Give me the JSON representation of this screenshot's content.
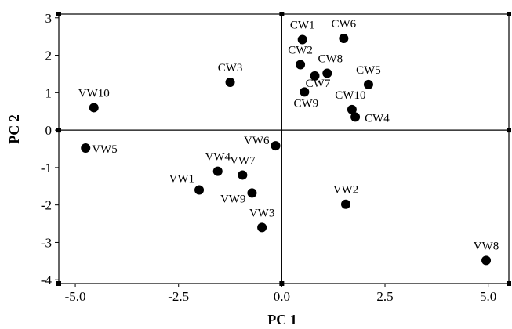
{
  "chart_data": {
    "type": "scatter",
    "title": "",
    "xlabel": "PC 1",
    "ylabel": "PC 2",
    "xlim": [
      -5.4,
      5.5
    ],
    "ylim": [
      -4.1,
      3.1
    ],
    "x_ticks": [
      -5.0,
      -2.5,
      0.0,
      2.5,
      5.0
    ],
    "x_tick_labels": [
      "-5.0",
      "-2.5",
      "0.0",
      "2.5",
      "5.0"
    ],
    "y_ticks": [
      -4,
      -3,
      -2,
      -1,
      0,
      1,
      2,
      3
    ],
    "y_tick_labels": [
      "-4",
      "-3",
      "-2",
      "-1",
      "0",
      "1",
      "2",
      "3"
    ],
    "grid": false,
    "reference_lines": {
      "x": 0,
      "y": 0
    },
    "points": [
      {
        "label": "CW1",
        "x": 0.5,
        "y": 2.42
      },
      {
        "label": "CW6",
        "x": 1.5,
        "y": 2.45
      },
      {
        "label": "CW2",
        "x": 0.45,
        "y": 1.75
      },
      {
        "label": "CW8",
        "x": 1.1,
        "y": 1.52
      },
      {
        "label": "CW7",
        "x": 0.8,
        "y": 1.45
      },
      {
        "label": "CW5",
        "x": 2.1,
        "y": 1.22
      },
      {
        "label": "CW3",
        "x": -1.25,
        "y": 1.28
      },
      {
        "label": "CW9",
        "x": 0.55,
        "y": 1.02
      },
      {
        "label": "CW10",
        "x": 1.7,
        "y": 0.55
      },
      {
        "label": "CW4",
        "x": 1.78,
        "y": 0.35
      },
      {
        "label": "VW10",
        "x": -4.55,
        "y": 0.6
      },
      {
        "label": "VW5",
        "x": -4.75,
        "y": -0.48
      },
      {
        "label": "VW6",
        "x": -0.15,
        "y": -0.42
      },
      {
        "label": "VW4",
        "x": -1.55,
        "y": -1.1
      },
      {
        "label": "VW7",
        "x": -0.95,
        "y": -1.2
      },
      {
        "label": "VW1",
        "x": -2.0,
        "y": -1.6
      },
      {
        "label": "VW9",
        "x": -0.72,
        "y": -1.68
      },
      {
        "label": "VW3",
        "x": -0.48,
        "y": -2.6
      },
      {
        "label": "VW2",
        "x": 1.55,
        "y": -1.98
      },
      {
        "label": "VW8",
        "x": 4.95,
        "y": -3.48
      }
    ]
  }
}
